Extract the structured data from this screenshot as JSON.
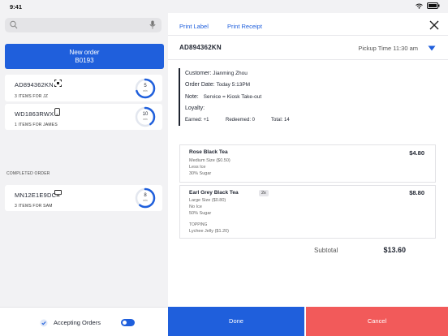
{
  "status_bar": {
    "time": "9:41"
  },
  "sidebar": {
    "new_order": {
      "label": "New order",
      "number": "B0193"
    },
    "active_orders": [
      {
        "id": "AD894362KN",
        "icon": "kiosk-icon",
        "items": "3 ITEMS FOR JZ",
        "minutes": "5",
        "unit": "min",
        "progress": 0.7
      },
      {
        "id": "WD1863RWX",
        "icon": "phone-icon",
        "items": "1 ITEMS FOR JAMES",
        "minutes": "10",
        "unit": "min",
        "progress": 0.4
      }
    ],
    "completed_label": "COMPLETED ORDER",
    "completed_orders": [
      {
        "id": "MN12E1E9DC",
        "icon": "monitor-icon",
        "items": "3 ITEMS FOR SAM",
        "minutes": "8",
        "unit": "min",
        "progress": 0.6
      }
    ],
    "accepting_label": "Accepting Orders"
  },
  "detail": {
    "tabs": {
      "print_label": "Print Label",
      "print_receipt": "Print Receipt"
    },
    "order_id": "AD894362KN",
    "pickup_time": "Pickup Time 11:30 am",
    "customer": {
      "customer_key": "Customer:",
      "customer_value": "Jianming Zhou",
      "date_key": "Order Date:",
      "date_value": "Today 5:13PM",
      "note_key": "Note:",
      "note_value": "Service = Kiosk Take-out",
      "loyalty_key": "Loyalty:",
      "earned": "Earned: +1",
      "redeemed": "Redeemed: 0",
      "total": "Total: 14"
    },
    "items": [
      {
        "name": "Rose Black Tea",
        "price": "$4.80",
        "options": [
          "Medium Size ($0.50)",
          "Less Ice",
          "30% Sugar"
        ]
      },
      {
        "name": "Earl Grey Black Tea",
        "qty": "2x",
        "price": "$8.80",
        "options": [
          "Large Size ($0.80)",
          "No Ice",
          "50% Sugar"
        ],
        "topping_label": "TOPPING",
        "topping": "Lychee Jelly ($1.20)"
      }
    ],
    "subtotal_label": "Subtotal",
    "subtotal_value": "$13.60",
    "done_label": "Done",
    "cancel_label": "Cancel"
  },
  "colors": {
    "accent": "#1f5fdc",
    "danger": "#f25a5a"
  }
}
